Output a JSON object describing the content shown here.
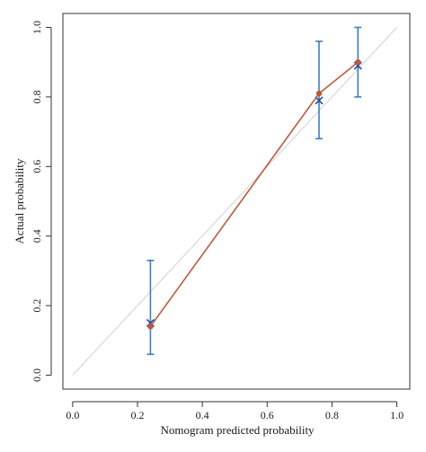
{
  "chart_data": {
    "type": "scatter",
    "title": "",
    "xlabel": "Nomogram predicted probability",
    "ylabel": "Actual probability",
    "xlim": [
      -0.03,
      1.04
    ],
    "ylim": [
      -0.04,
      1.04
    ],
    "x_ticks": [
      "0.0",
      "0.2",
      "0.4",
      "0.6",
      "0.8",
      "1.0"
    ],
    "y_ticks": [
      "0.0",
      "0.2",
      "0.4",
      "0.6",
      "0.8",
      "1.0"
    ],
    "grid": false,
    "reference_line": {
      "from": [
        0,
        0
      ],
      "to": [
        1,
        1
      ],
      "color": "#d0d0d8"
    },
    "series": [
      {
        "type": "line",
        "color": "#c0583a",
        "marker": "circle",
        "points": [
          {
            "x": 0.24,
            "y": 0.14
          },
          {
            "x": 0.76,
            "y": 0.81
          },
          {
            "x": 0.88,
            "y": 0.9
          }
        ]
      },
      {
        "type": "errorbar",
        "color": "#3a7fc4",
        "marker": "x",
        "points": [
          {
            "x": 0.24,
            "y": 0.15,
            "low": 0.06,
            "high": 0.33
          },
          {
            "x": 0.76,
            "y": 0.79,
            "low": 0.68,
            "high": 0.96
          },
          {
            "x": 0.88,
            "y": 0.89,
            "low": 0.8,
            "high": 1.0
          }
        ]
      }
    ]
  }
}
